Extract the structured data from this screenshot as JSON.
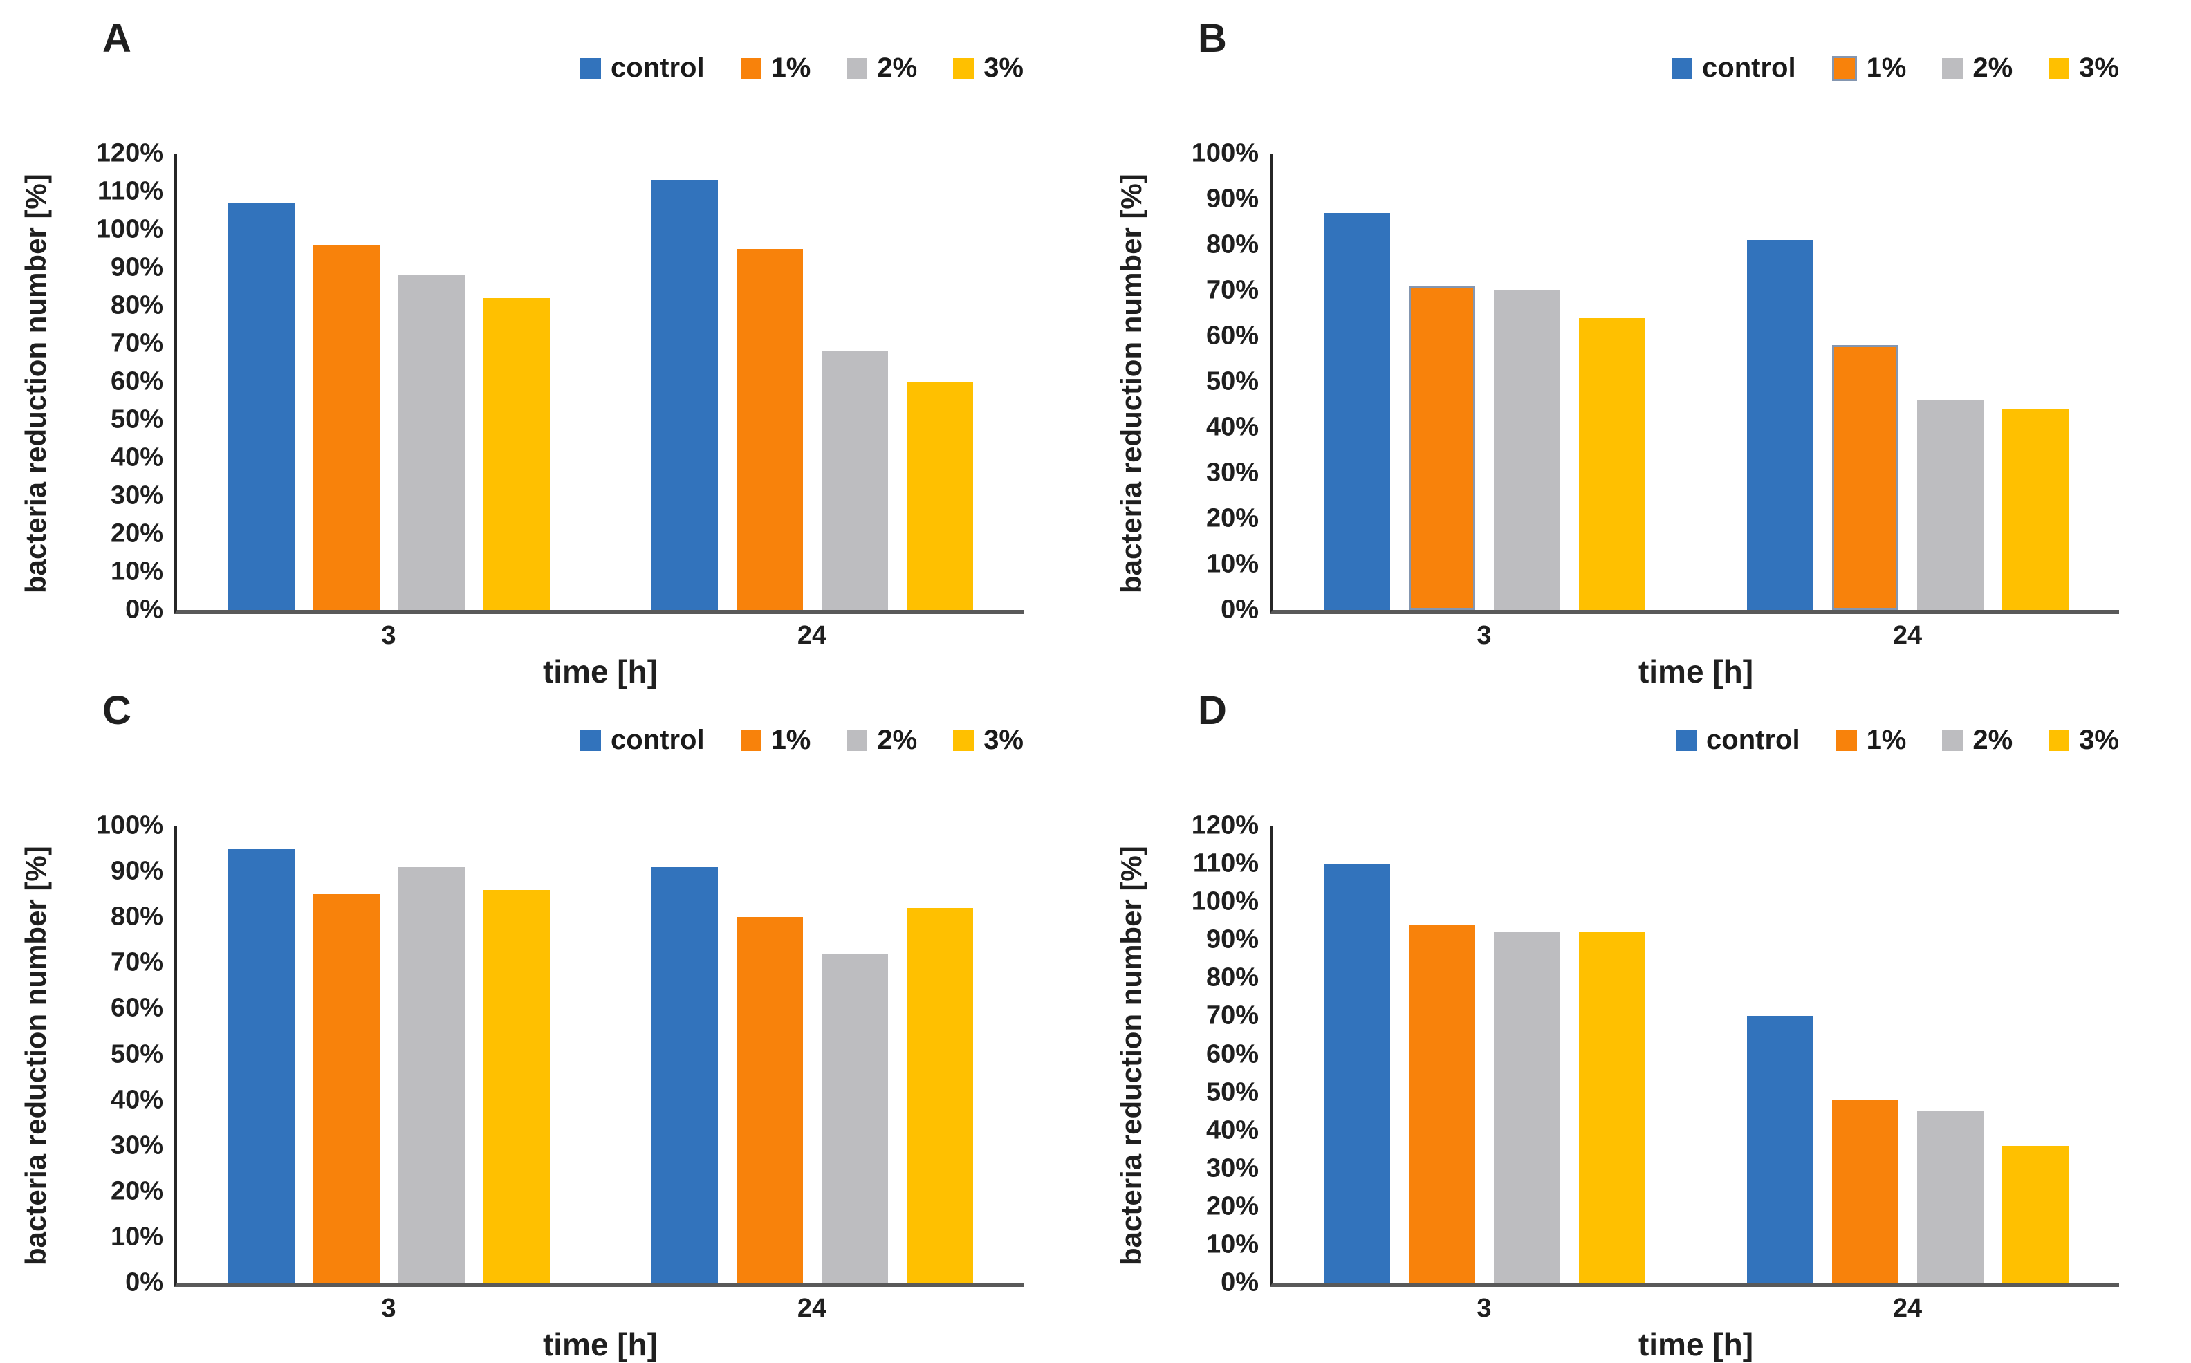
{
  "colors": {
    "control": "#3273BC",
    "pct1": "#F8820B",
    "pct2": "#BDBDC0",
    "pct3": "#FFC000",
    "outline_1pct_panel_b": "#8496B0",
    "y_axis_line": "#262626",
    "x_axis_line": "#595959",
    "text": "#1f1f1f"
  },
  "legend_items": [
    "control",
    "1%",
    "2%",
    "3%"
  ],
  "chart_data": [
    {
      "type": "bar",
      "panel_label": "A",
      "xlabel": "time [h]",
      "ylabel": "bacteria reduction number [%]",
      "ylim": [
        0,
        120
      ],
      "ytick_step": 10,
      "ytick_labels": [
        "120%",
        "110%",
        "100%",
        "90%",
        "80%",
        "70%",
        "60%",
        "50%",
        "40%",
        "30%",
        "20%",
        "10%",
        "0%"
      ],
      "categories": [
        "3",
        "24"
      ],
      "grid": false,
      "legend_position": "top-right",
      "series": [
        {
          "name": "control",
          "color": "#3273BC",
          "values": [
            107,
            113
          ]
        },
        {
          "name": "1%",
          "color": "#F8820B",
          "values": [
            96,
            95
          ]
        },
        {
          "name": "2%",
          "color": "#BDBDC0",
          "values": [
            88,
            68
          ]
        },
        {
          "name": "3%",
          "color": "#FFC000",
          "values": [
            82,
            60
          ]
        }
      ]
    },
    {
      "type": "bar",
      "panel_label": "B",
      "xlabel": "time [h]",
      "ylabel": "bacteria reduction number [%]",
      "ylim": [
        0,
        100
      ],
      "ytick_step": 10,
      "ytick_labels": [
        "100%",
        "90%",
        "80%",
        "70%",
        "60%",
        "50%",
        "40%",
        "30%",
        "20%",
        "10%",
        "0%"
      ],
      "categories": [
        "3",
        "24"
      ],
      "grid": false,
      "legend_position": "top-right",
      "series": [
        {
          "name": "control",
          "color": "#3273BC",
          "values": [
            87,
            81
          ]
        },
        {
          "name": "1%",
          "color": "#F8820B",
          "outline": "#8496B0",
          "values": [
            71,
            58
          ]
        },
        {
          "name": "2%",
          "color": "#BDBDC0",
          "values": [
            70,
            46
          ]
        },
        {
          "name": "3%",
          "color": "#FFC000",
          "values": [
            64,
            44
          ]
        }
      ]
    },
    {
      "type": "bar",
      "panel_label": "C",
      "xlabel": "time [h]",
      "ylabel": "bacteria reduction number [%]",
      "ylim": [
        0,
        100
      ],
      "ytick_step": 10,
      "ytick_labels": [
        "100%",
        "90%",
        "80%",
        "70%",
        "60%",
        "50%",
        "40%",
        "30%",
        "20%",
        "10%",
        "0%"
      ],
      "categories": [
        "3",
        "24"
      ],
      "grid": false,
      "legend_position": "top-right",
      "series": [
        {
          "name": "control",
          "color": "#3273BC",
          "values": [
            95,
            91
          ]
        },
        {
          "name": "1%",
          "color": "#F8820B",
          "values": [
            85,
            80
          ]
        },
        {
          "name": "2%",
          "color": "#BDBDC0",
          "values": [
            91,
            72
          ]
        },
        {
          "name": "3%",
          "color": "#FFC000",
          "values": [
            86,
            82
          ]
        }
      ]
    },
    {
      "type": "bar",
      "panel_label": "D",
      "xlabel": "time [h]",
      "ylabel": "bacteria reduction number [%]",
      "ylim": [
        0,
        120
      ],
      "ytick_step": 10,
      "ytick_labels": [
        "120%",
        "110%",
        "100%",
        "90%",
        "80%",
        "70%",
        "60%",
        "50%",
        "40%",
        "30%",
        "20%",
        "10%",
        "0%"
      ],
      "categories": [
        "3",
        "24"
      ],
      "grid": false,
      "legend_position": "top-right",
      "series": [
        {
          "name": "control",
          "color": "#3273BC",
          "values": [
            110,
            70
          ]
        },
        {
          "name": "1%",
          "color": "#F8820B",
          "values": [
            94,
            48
          ]
        },
        {
          "name": "2%",
          "color": "#BDBDC0",
          "values": [
            92,
            45
          ]
        },
        {
          "name": "3%",
          "color": "#FFC000",
          "values": [
            92,
            36
          ]
        }
      ]
    }
  ]
}
